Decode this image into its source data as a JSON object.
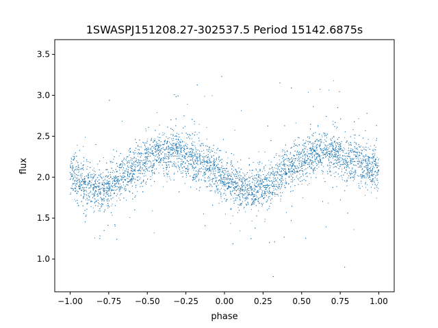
{
  "chart_data": {
    "type": "scatter",
    "title": "1SWASPJ151208.27-302537.5 Period 15142.6875s",
    "xlabel": "phase",
    "ylabel": "flux",
    "xlim": [
      -1.1,
      1.1
    ],
    "ylim": [
      0.6,
      3.68
    ],
    "xticks": [
      -1.0,
      -0.75,
      -0.5,
      -0.25,
      0.0,
      0.25,
      0.5,
      0.75,
      1.0
    ],
    "xtick_labels": [
      "−1.00",
      "−0.75",
      "−0.50",
      "−0.25",
      "0.00",
      "0.25",
      "0.50",
      "0.75",
      "1.00"
    ],
    "yticks": [
      1.0,
      1.5,
      2.0,
      2.5,
      3.0,
      3.5
    ],
    "ytick_labels": [
      "1.0",
      "1.5",
      "2.0",
      "2.5",
      "3.0",
      "3.5"
    ],
    "grid": false,
    "legend": "none",
    "marker_color": "#1f77b4",
    "series": [
      {
        "points_description": "dense phase-folded light curve, repeated twice over phase -1 to 1",
        "x": [
          -1.0,
          -0.9,
          -0.8,
          -0.7,
          -0.6,
          -0.5,
          -0.4,
          -0.3,
          -0.2,
          -0.1,
          0.0,
          0.1,
          0.2,
          0.3,
          0.4,
          0.5,
          0.6,
          0.7,
          0.8,
          0.9,
          1.0
        ],
        "y": [
          2.05,
          1.87,
          1.83,
          1.95,
          2.1,
          2.22,
          2.3,
          2.3,
          2.22,
          2.12,
          2.0,
          1.85,
          1.83,
          1.93,
          2.08,
          2.22,
          2.3,
          2.3,
          2.22,
          2.15,
          2.06
        ]
      }
    ]
  }
}
